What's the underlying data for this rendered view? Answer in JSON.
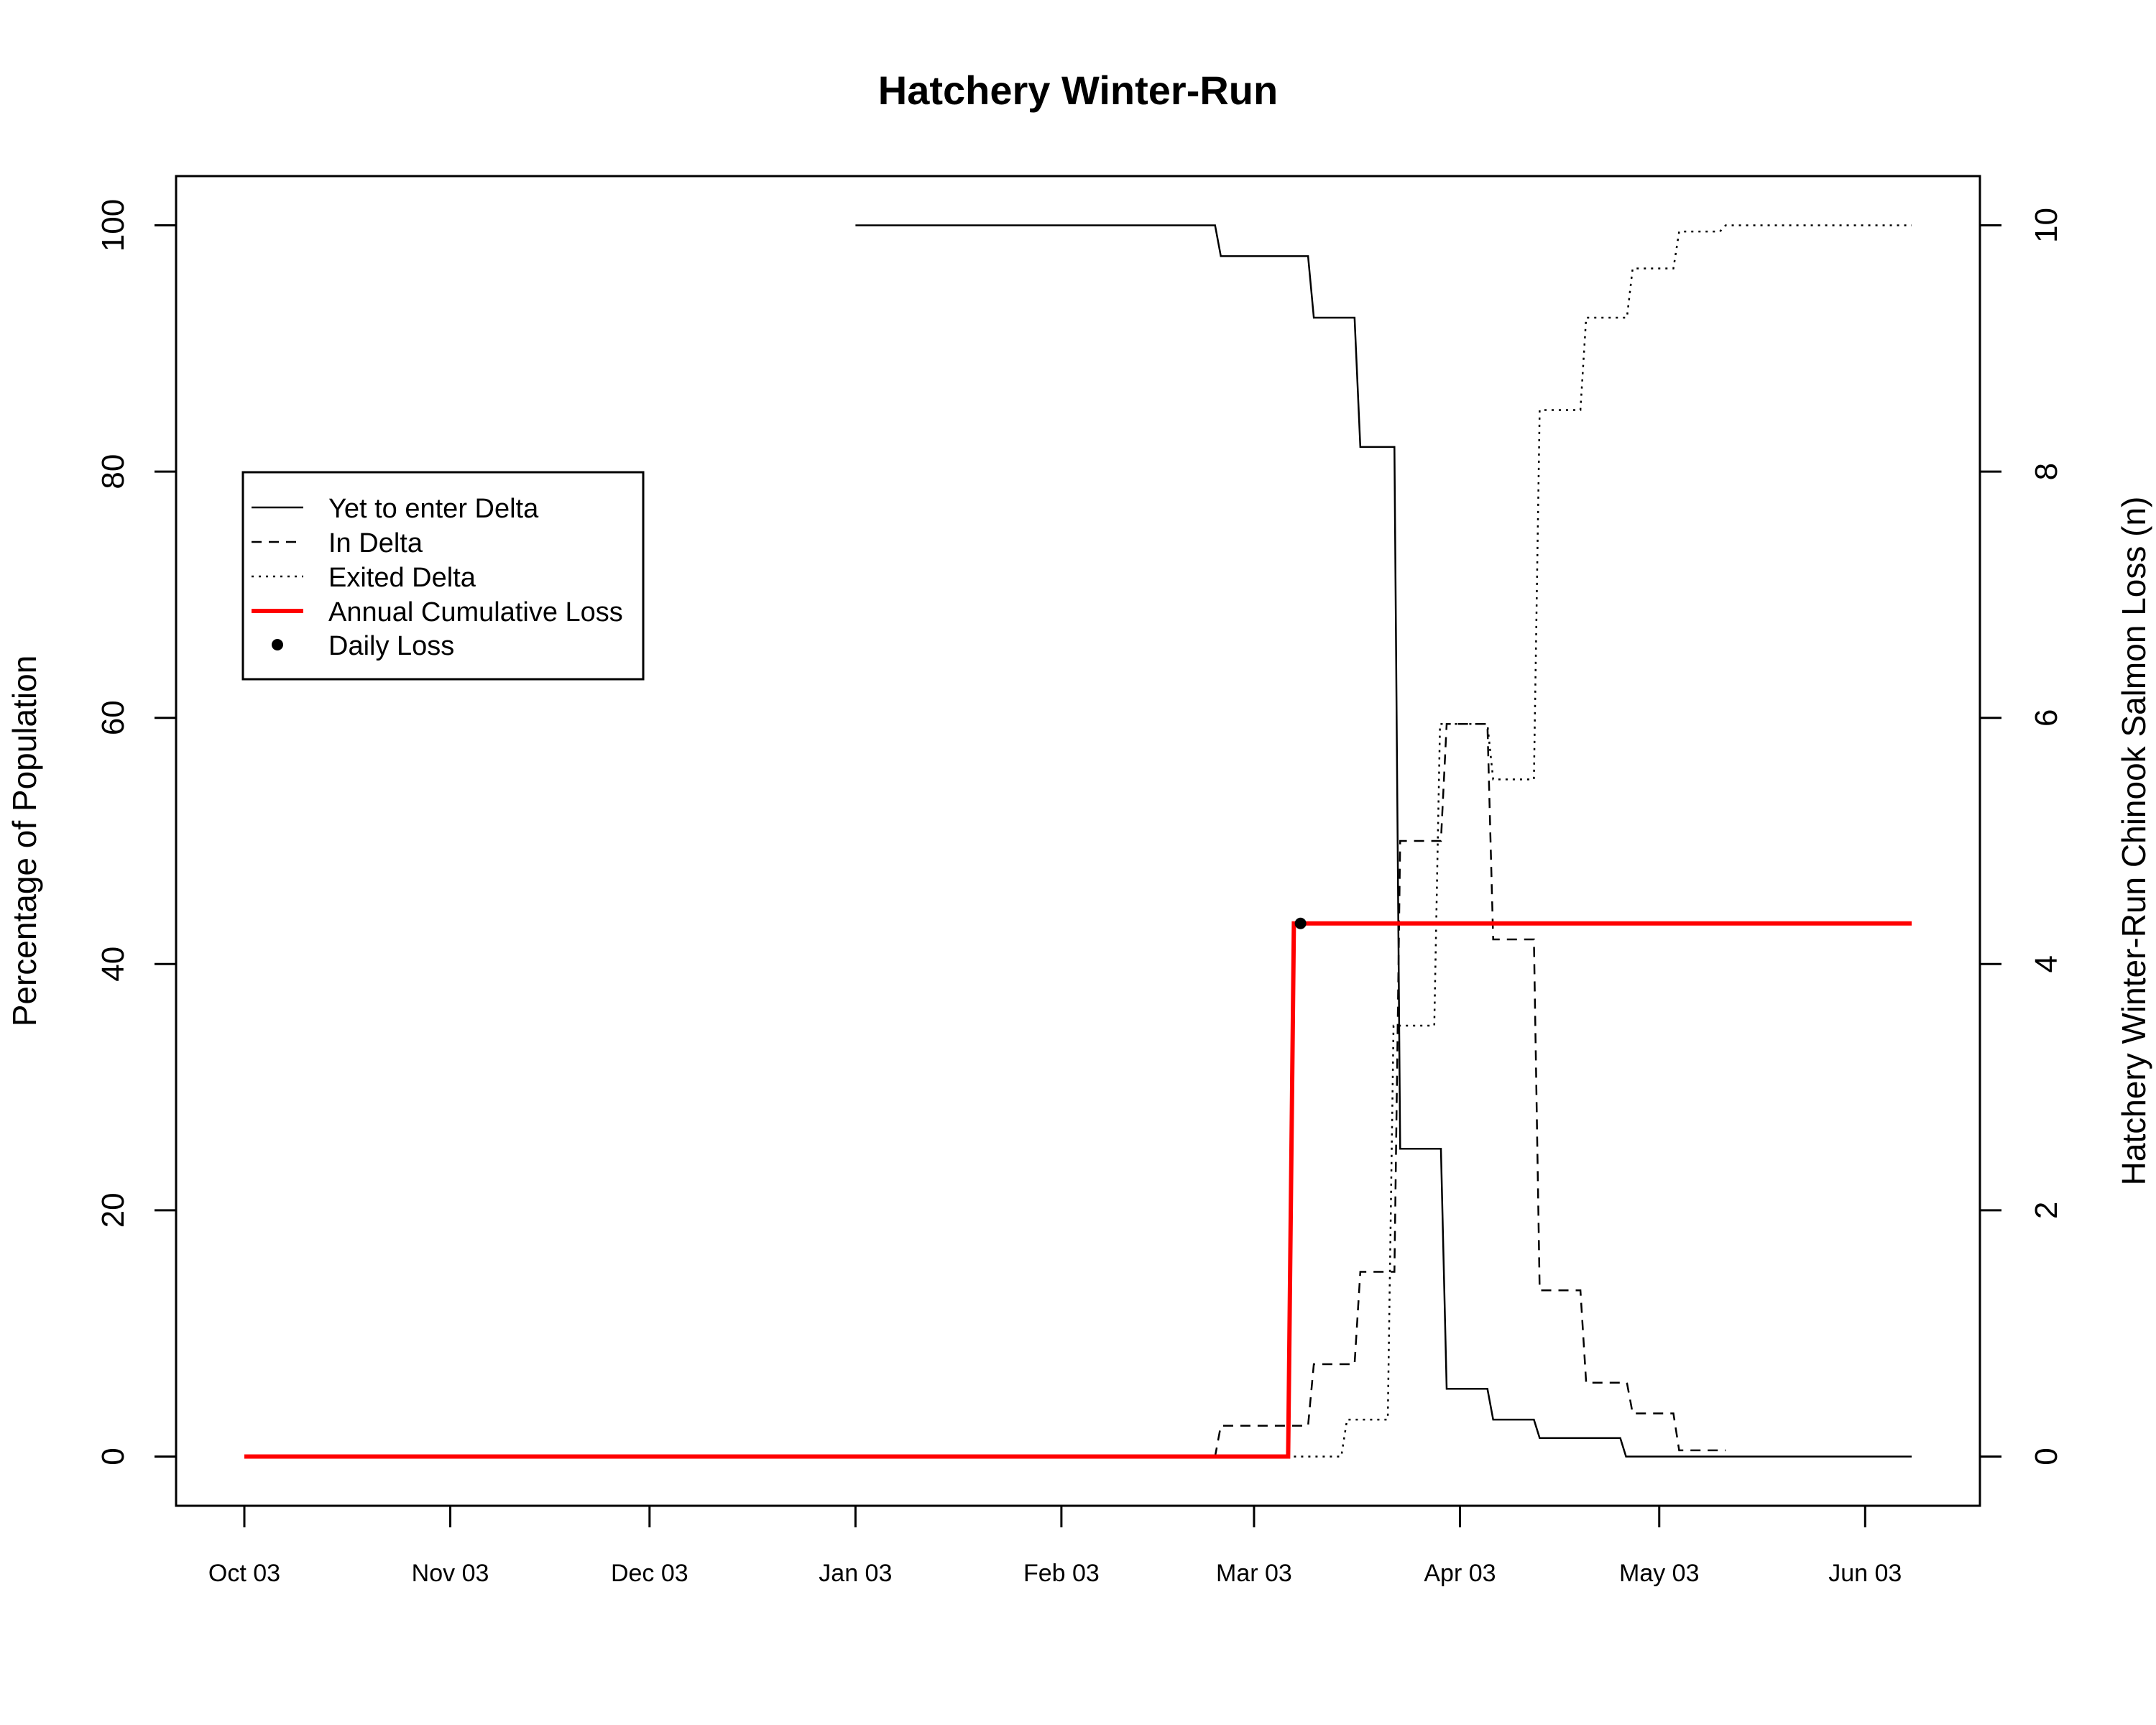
{
  "chart_data": {
    "type": "line",
    "title": "Hatchery Winter-Run",
    "ylabel_left": "Percentage of Population",
    "ylabel_right": "Hatchery Winter-Run Chinook Salmon Loss (n)",
    "xlabel": "",
    "x_axis": {
      "type": "date",
      "range": [
        "2023-10-03",
        "2024-06-10"
      ],
      "ticks": [
        {
          "date": "2023-10-03",
          "label": "Oct 03"
        },
        {
          "date": "2023-11-03",
          "label": "Nov 03"
        },
        {
          "date": "2023-12-03",
          "label": "Dec 03"
        },
        {
          "date": "2024-01-03",
          "label": "Jan 03"
        },
        {
          "date": "2024-02-03",
          "label": "Feb 03"
        },
        {
          "date": "2024-03-03",
          "label": "Mar 03"
        },
        {
          "date": "2024-04-03",
          "label": "Apr 03"
        },
        {
          "date": "2024-05-03",
          "label": "May 03"
        },
        {
          "date": "2024-06-03",
          "label": "Jun 03"
        }
      ]
    },
    "y_left": {
      "range": [
        -4,
        104
      ],
      "ticks": [
        0,
        20,
        40,
        60,
        80,
        100
      ],
      "tick_labels": [
        "0",
        "20",
        "40",
        "60",
        "80",
        "100"
      ]
    },
    "y_right": {
      "range": [
        -0.4,
        10.4
      ],
      "ticks": [
        0,
        2,
        4,
        6,
        8,
        10
      ],
      "tick_labels": [
        "0",
        "2",
        "4",
        "6",
        "8",
        "10"
      ]
    },
    "grid": false,
    "legend_position": "upper-left",
    "series": [
      {
        "name": "Yet to enter Delta",
        "axis": "left",
        "style": "solid",
        "color": "#000000",
        "step": true,
        "points": [
          [
            "2024-01-03",
            100
          ],
          [
            "2024-02-27",
            97.5
          ],
          [
            "2024-03-12",
            92.5
          ],
          [
            "2024-03-19",
            82
          ],
          [
            "2024-03-25",
            25
          ],
          [
            "2024-04-01",
            5.5
          ],
          [
            "2024-04-08",
            3
          ],
          [
            "2024-04-15",
            1.5
          ],
          [
            "2024-04-28",
            0
          ],
          [
            "2024-06-10",
            0
          ]
        ]
      },
      {
        "name": "In Delta",
        "axis": "left",
        "style": "dashed",
        "color": "#000000",
        "step": true,
        "points": [
          [
            "2024-02-26",
            0
          ],
          [
            "2024-02-27",
            2.5
          ],
          [
            "2024-03-12",
            7.5
          ],
          [
            "2024-03-19",
            15
          ],
          [
            "2024-03-25",
            50
          ],
          [
            "2024-04-01",
            59.5
          ],
          [
            "2024-04-08",
            42
          ],
          [
            "2024-04-15",
            13.5
          ],
          [
            "2024-04-22",
            6
          ],
          [
            "2024-04-29",
            3.5
          ],
          [
            "2024-05-06",
            0.5
          ],
          [
            "2024-05-13",
            0.5
          ]
        ]
      },
      {
        "name": "Exited Delta",
        "axis": "left",
        "style": "dotted",
        "color": "#000000",
        "step": true,
        "points": [
          [
            "2024-03-09",
            0
          ],
          [
            "2024-03-17",
            3
          ],
          [
            "2024-03-24",
            35
          ],
          [
            "2024-03-31",
            59.5
          ],
          [
            "2024-04-08",
            55
          ],
          [
            "2024-04-15",
            85
          ],
          [
            "2024-04-22",
            92.5
          ],
          [
            "2024-04-29",
            96.5
          ],
          [
            "2024-05-06",
            99.5
          ],
          [
            "2024-05-13",
            100
          ],
          [
            "2024-06-10",
            100
          ]
        ]
      },
      {
        "name": "Annual Cumulative Loss",
        "axis": "right",
        "style": "solid",
        "color": "#ff0000",
        "step": true,
        "points": [
          [
            "2023-10-03",
            0
          ],
          [
            "2024-03-09",
            4.33
          ],
          [
            "2024-06-10",
            4.33
          ]
        ]
      },
      {
        "name": "Daily Loss",
        "axis": "right",
        "style": "points",
        "color": "#000000",
        "points": [
          [
            "2024-03-10",
            4.33
          ]
        ]
      }
    ]
  }
}
